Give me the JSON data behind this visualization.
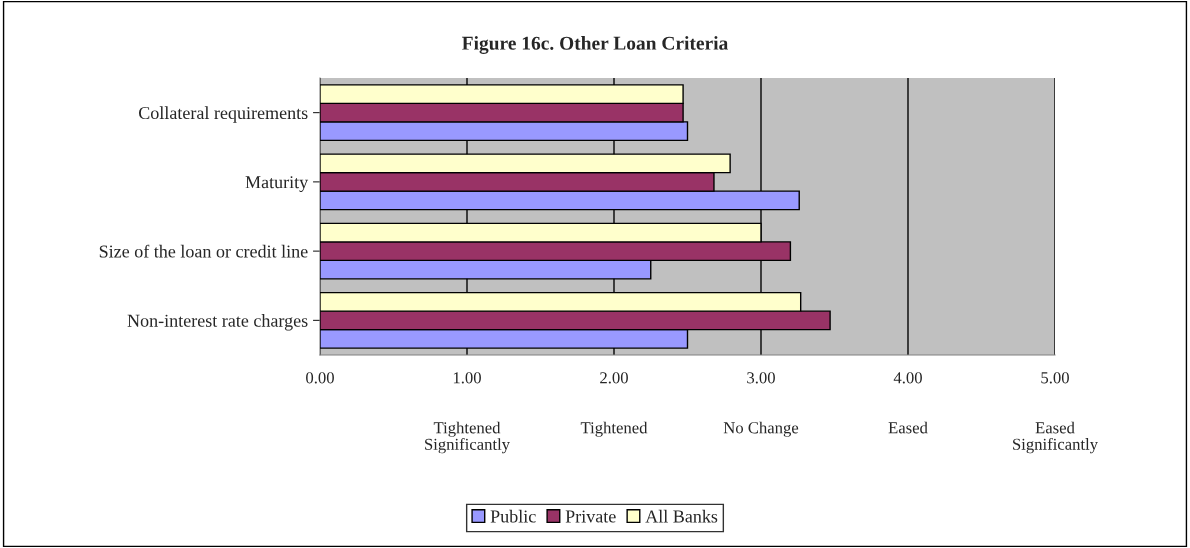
{
  "chart_data": {
    "type": "bar",
    "orientation": "horizontal",
    "title": "Figure 16c. Other Loan Criteria",
    "categories": [
      "Collateral requirements",
      "Maturity",
      "Size of the loan or credit line",
      "Non-interest rate charges"
    ],
    "series": [
      {
        "name": "Public",
        "color": "#9999ff",
        "values": [
          2.5,
          3.26,
          2.25,
          2.5
        ]
      },
      {
        "name": "Private",
        "color": "#993366",
        "values": [
          2.47,
          2.68,
          3.2,
          3.47
        ]
      },
      {
        "name": "All Banks",
        "color": "#ffffcc",
        "values": [
          2.47,
          2.79,
          3.0,
          3.27
        ]
      }
    ],
    "xlim": [
      0,
      5
    ],
    "xticks": [
      {
        "value": 0,
        "label": "0.00"
      },
      {
        "value": 1,
        "label": "1.00"
      },
      {
        "value": 2,
        "label": "2.00"
      },
      {
        "value": 3,
        "label": "3.00"
      },
      {
        "value": 4,
        "label": "4.00"
      },
      {
        "value": 5,
        "label": "5.00"
      }
    ],
    "annotations": [
      "Tightened\nSignificantly",
      "Tightened",
      "No Change",
      "Eased",
      "Eased\nSignificantly"
    ],
    "grid": "x",
    "legend": "bottom"
  }
}
